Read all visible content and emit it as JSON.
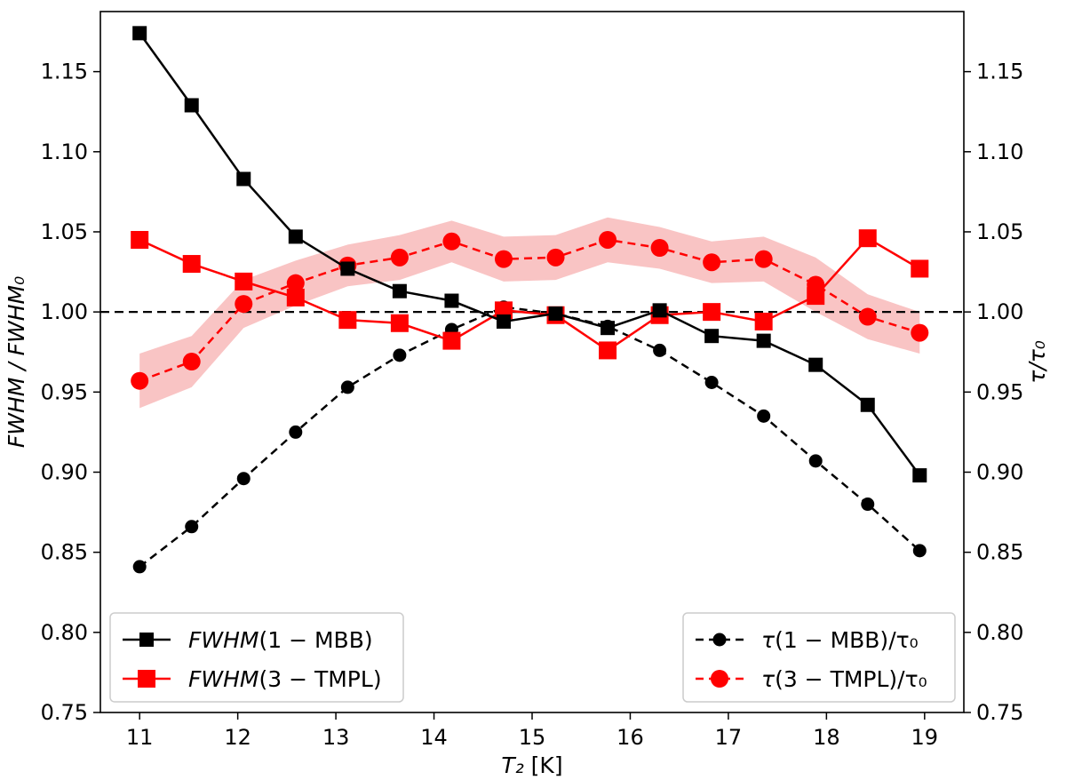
{
  "chart_data": {
    "type": "line",
    "title": "",
    "xlabel": "T₂ [K]",
    "ylabel_left": "FWHM / FWHM₀",
    "ylabel_right": "τ/τ₀",
    "xlim": [
      10.6,
      19.4
    ],
    "ylim": [
      0.75,
      1.1875
    ],
    "xticks": [
      11,
      12,
      13,
      14,
      15,
      16,
      17,
      18,
      19
    ],
    "yticks": [
      0.75,
      0.8,
      0.85,
      0.9,
      0.95,
      1.0,
      1.05,
      1.1,
      1.15
    ],
    "ytick_labels": [
      "0.75",
      "0.80",
      "0.85",
      "0.90",
      "0.95",
      "1.00",
      "1.05",
      "1.10",
      "1.15"
    ],
    "reference_line": 1.0,
    "x": [
      11.0,
      11.53,
      12.06,
      12.59,
      13.12,
      13.65,
      14.18,
      14.71,
      15.24,
      15.77,
      16.3,
      16.83,
      17.36,
      17.89,
      18.42,
      18.95
    ],
    "series": [
      {
        "name": "FWHM(1 − MBB)",
        "label_italic": "FWHM",
        "label_rest": "(1 − MBB)",
        "axis": "left",
        "color": "#000000",
        "linestyle": "solid",
        "marker": "square",
        "values": [
          1.174,
          1.129,
          1.083,
          1.047,
          1.027,
          1.013,
          1.007,
          0.994,
          0.999,
          0.99,
          1.001,
          0.985,
          0.982,
          0.967,
          0.942,
          0.898
        ]
      },
      {
        "name": "FWHM(3 − TMPL)",
        "label_italic": "FWHM",
        "label_rest": "(3 − TMPL)",
        "axis": "left",
        "color": "#ff0000",
        "linestyle": "solid",
        "marker": "square-large",
        "values": [
          1.045,
          1.03,
          1.019,
          1.009,
          0.995,
          0.993,
          0.982,
          1.001,
          0.998,
          0.976,
          0.998,
          1.0,
          0.994,
          1.01,
          1.046,
          1.027
        ]
      },
      {
        "name": "τ(1 − MBB)/τ₀",
        "label_italic": "τ",
        "label_rest": "(1 − MBB)/τ₀",
        "axis": "right",
        "color": "#000000",
        "linestyle": "dashed",
        "marker": "circle",
        "values": [
          0.841,
          0.866,
          0.896,
          0.925,
          0.953,
          0.973,
          0.989,
          1.003,
          0.999,
          0.991,
          0.976,
          0.956,
          0.935,
          0.907,
          0.88,
          0.851
        ]
      },
      {
        "name": "τ(3 − TMPL)/τ₀",
        "label_italic": "τ",
        "label_rest": "(3 − TMPL)/τ₀",
        "axis": "right",
        "color": "#ff0000",
        "linestyle": "dashed",
        "marker": "circle-large",
        "values": [
          0.957,
          0.969,
          1.005,
          1.018,
          1.029,
          1.034,
          1.044,
          1.033,
          1.034,
          1.045,
          1.04,
          1.031,
          1.033,
          1.017,
          0.997,
          0.987
        ],
        "band_lower": [
          0.94,
          0.953,
          0.99,
          1.004,
          1.016,
          1.02,
          1.031,
          1.019,
          1.02,
          1.031,
          1.027,
          1.018,
          1.019,
          1.0,
          0.983,
          0.974
        ],
        "band_upper": [
          0.974,
          0.985,
          1.02,
          1.032,
          1.042,
          1.048,
          1.057,
          1.047,
          1.048,
          1.059,
          1.053,
          1.044,
          1.047,
          1.034,
          1.011,
          1.0
        ],
        "band_color": "#f9c4c4"
      }
    ],
    "legends": {
      "left": {
        "placement": "lower-left",
        "series": [
          0,
          1
        ]
      },
      "right": {
        "placement": "lower-right",
        "series": [
          2,
          3
        ]
      }
    }
  }
}
